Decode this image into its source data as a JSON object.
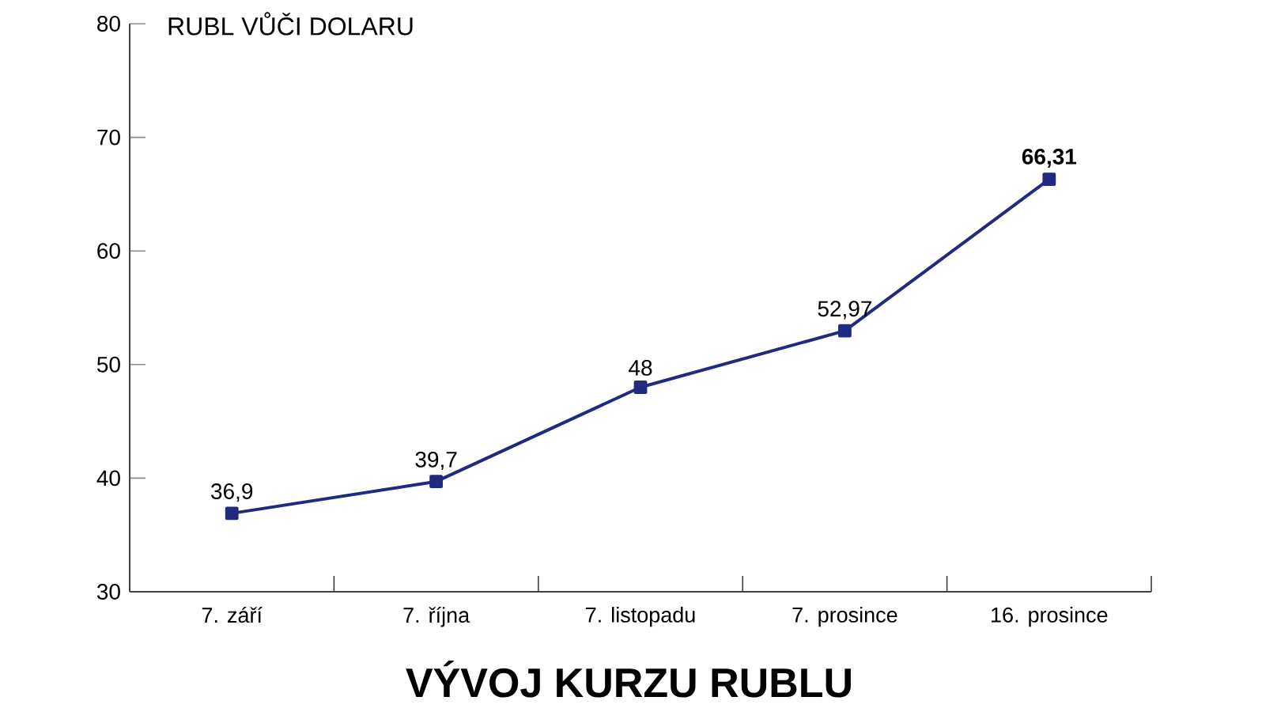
{
  "chart_data": {
    "type": "line",
    "title": "VÝVOJ KURZU RUBLU",
    "ylabel": "RUBL VŮČI DOLARU",
    "categories": [
      "7. září",
      "7. října",
      "7. listopadu",
      "7. prosince",
      "16. prosince"
    ],
    "values": [
      36.9,
      39.7,
      48,
      52.97,
      66.31
    ],
    "value_labels": [
      "36,9",
      "39,7",
      "48",
      "52,97",
      "**66,31**"
    ],
    "color": "#1f2a80",
    "ylim": [
      30,
      80
    ],
    "yticks": [
      30,
      40,
      50,
      60,
      70,
      80
    ],
    "marker": "square",
    "line_style": "solid"
  }
}
